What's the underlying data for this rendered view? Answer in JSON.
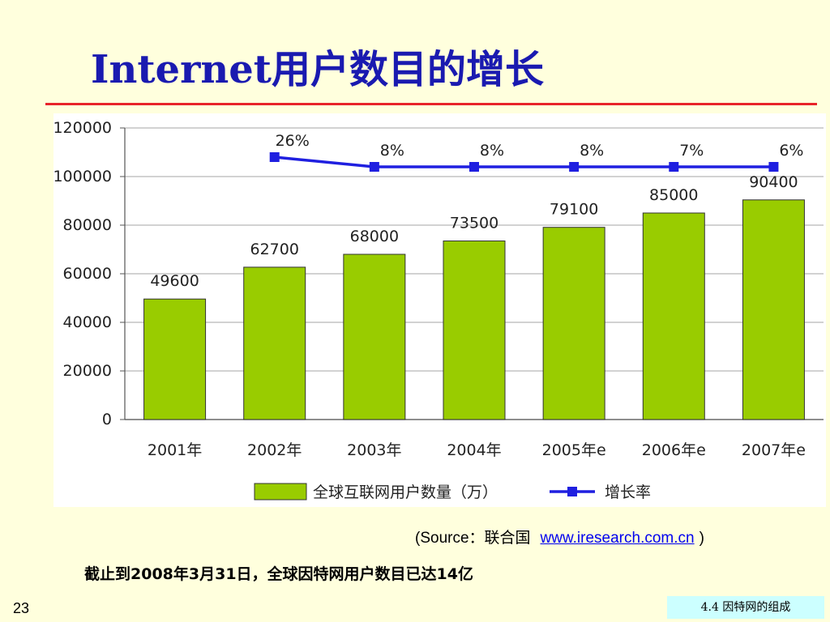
{
  "title": "Internet用户数目的增长",
  "source": {
    "prefix": "(Source：联合国",
    "link": "www.iresearch.com.cn",
    "suffix": ")"
  },
  "note": "截止到2008年3月31日，全球因特网用户数目已达14亿",
  "page_number": "23",
  "section_tag": "4.4  因特网的组成",
  "colors": {
    "bar": "#99CC00",
    "bar_edge": "#333333",
    "line": "#1F1FE0",
    "title": "#1A1AB0",
    "rule": "#E8232A"
  },
  "chart_data": {
    "type": "bar",
    "categories": [
      "2001年",
      "2002年",
      "2003年",
      "2004年",
      "2005年e",
      "2006年e",
      "2007年e"
    ],
    "series": [
      {
        "name": "全球互联网用户数量（万）",
        "type": "bar",
        "values": [
          49600,
          62700,
          68000,
          73500,
          79100,
          85000,
          90400
        ],
        "labels": [
          "49600",
          "62700",
          "68000",
          "73500",
          "79100",
          "85000",
          "90400"
        ]
      },
      {
        "name": "增长率",
        "type": "line",
        "values": [
          null,
          26,
          8,
          8,
          8,
          7,
          6
        ],
        "labels": [
          "",
          "26%",
          "8%",
          "8%",
          "8%",
          "7%",
          "6%"
        ],
        "plotted_y": [
          null,
          108000,
          104000,
          104000,
          104000,
          104000,
          104000
        ]
      }
    ],
    "yticks": [
      "0",
      "20000",
      "40000",
      "60000",
      "80000",
      "100000",
      "120000"
    ],
    "ylim": [
      0,
      120000
    ],
    "grid": true,
    "legend": "bottom"
  }
}
